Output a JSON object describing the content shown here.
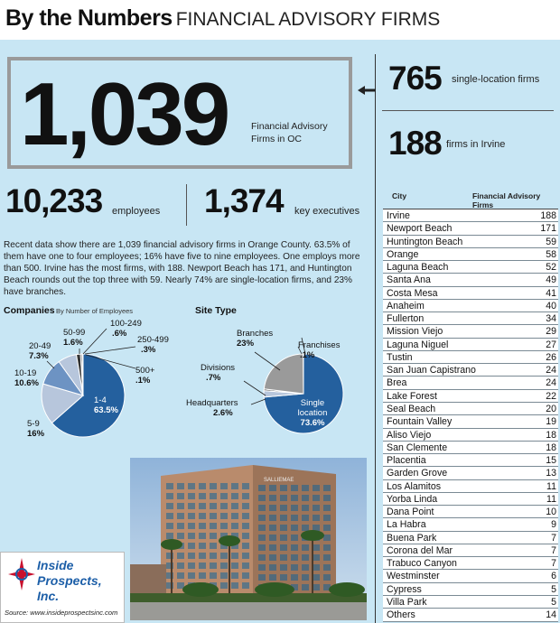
{
  "header": {
    "title_bold": "By the Numbers",
    "title_light": "FINANCIAL ADVISORY FIRMS"
  },
  "headline": {
    "value": "1,039",
    "label": "Financial Advisory Firms in OC"
  },
  "stats": {
    "employees": {
      "value": "10,233",
      "label": "employees"
    },
    "executives": {
      "value": "1,374",
      "label": "key executives"
    },
    "single_location": {
      "value": "765",
      "label": "single-location firms"
    },
    "irvine": {
      "value": "188",
      "label": "firms in Irvine"
    }
  },
  "paragraph": "Recent data show there are 1,039 financial advisory firms in Orange County. 63.5% of them have one to four employees; 16% have five to nine employees. One employs more than 500. Irvine has the most firms, with 188. Newport Beach has 171, and Huntington Beach rounds out the top three with 59. Nearly 74% are single-location firms, and 23% have branches.",
  "colors": {
    "background": "#c8e6f4",
    "pie_dark": "#24609e",
    "pie_light": "#b7c6dc",
    "pie_mid": "#6d93c3",
    "pie_gray": "#9a9a9a"
  },
  "chart_data": [
    {
      "type": "pie",
      "title": "Companies",
      "subtitle": "By Number of Employees",
      "slices": [
        {
          "label": "1-4",
          "value": 63.5,
          "display": "63.5%"
        },
        {
          "label": "5-9",
          "value": 16,
          "display": "16%"
        },
        {
          "label": "10-19",
          "value": 10.6,
          "display": "10.6%"
        },
        {
          "label": "20-49",
          "value": 7.3,
          "display": "7.3%"
        },
        {
          "label": "50-99",
          "value": 1.6,
          "display": "1.6%"
        },
        {
          "label": "100-249",
          "value": 0.6,
          "display": ".6%"
        },
        {
          "label": "250-499",
          "value": 0.3,
          "display": ".3%"
        },
        {
          "label": "500+",
          "value": 0.1,
          "display": ".1%"
        }
      ]
    },
    {
      "type": "pie",
      "title": "Site Type",
      "slices": [
        {
          "label": "Single location",
          "value": 73.6,
          "display": "73.6%"
        },
        {
          "label": "Headquarters",
          "value": 2.6,
          "display": "2.6%"
        },
        {
          "label": "Divisions",
          "value": 0.7,
          "display": ".7%"
        },
        {
          "label": "Branches",
          "value": 23,
          "display": "23%"
        },
        {
          "label": "Franchises",
          "value": 0.1,
          "display": ".1%"
        }
      ]
    },
    {
      "type": "table",
      "columns": [
        "City",
        "Financial Advisory Firms"
      ],
      "rows": [
        [
          "Irvine",
          188
        ],
        [
          "Newport Beach",
          171
        ],
        [
          "Huntington Beach",
          59
        ],
        [
          "Orange",
          58
        ],
        [
          "Laguna Beach",
          52
        ],
        [
          "Santa Ana",
          49
        ],
        [
          "Costa Mesa",
          41
        ],
        [
          "Anaheim",
          40
        ],
        [
          "Fullerton",
          34
        ],
        [
          "Mission Viejo",
          29
        ],
        [
          "Laguna Niguel",
          27
        ],
        [
          "Tustin",
          26
        ],
        [
          "San Juan Capistrano",
          24
        ],
        [
          "Brea",
          24
        ],
        [
          "Lake Forest",
          22
        ],
        [
          "Seal Beach",
          20
        ],
        [
          "Fountain Valley",
          19
        ],
        [
          "Aliso Viejo",
          18
        ],
        [
          "San Clemente",
          18
        ],
        [
          "Placentia",
          15
        ],
        [
          "Garden Grove",
          13
        ],
        [
          "Los Alamitos",
          11
        ],
        [
          "Yorba Linda",
          11
        ],
        [
          "Dana Point",
          10
        ],
        [
          "La Habra",
          9
        ],
        [
          "Buena Park",
          7
        ],
        [
          "Corona del Mar",
          7
        ],
        [
          "Trabuco Canyon",
          7
        ],
        [
          "Westminster",
          6
        ],
        [
          "Cypress",
          5
        ],
        [
          "Villa Park",
          5
        ],
        [
          "Others",
          14
        ]
      ]
    }
  ],
  "photo": {
    "sign_text": "SALLIEMAE"
  },
  "logo": {
    "line1": "Inside",
    "line2": "Prospects, Inc."
  },
  "source": "Source: www.insideprospectsinc.com"
}
